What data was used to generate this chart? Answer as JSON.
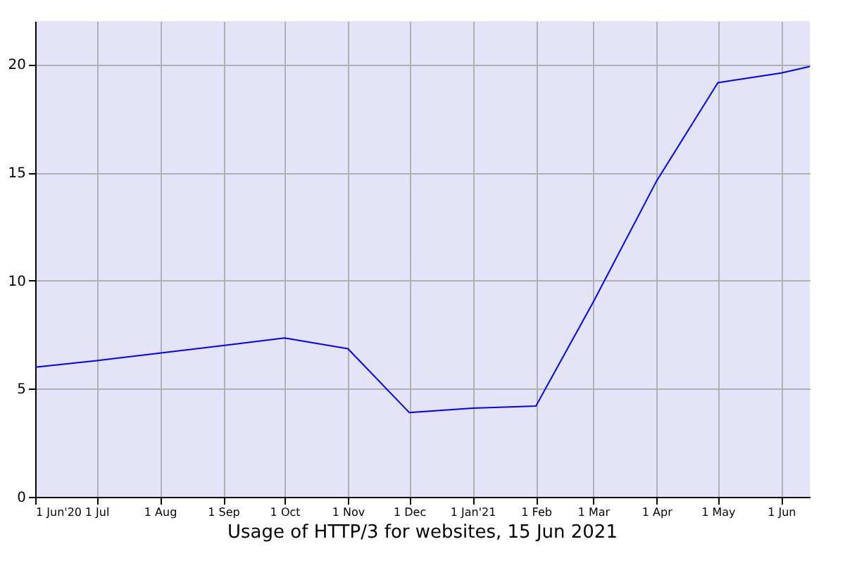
{
  "chart_data": {
    "type": "line",
    "title": "Usage of HTTP/3 for websites, 15 Jun 2021",
    "x": [
      "2020-06-01",
      "2020-07-01",
      "2020-08-01",
      "2020-09-01",
      "2020-10-01",
      "2020-11-01",
      "2020-12-01",
      "2021-01-01",
      "2021-02-01",
      "2021-03-01",
      "2021-04-01",
      "2021-05-01",
      "2021-06-01",
      "2021-06-15"
    ],
    "series": [
      {
        "color": "#0000ff",
        "values": [
          6.0,
          6.3,
          6.65,
          7.0,
          7.35,
          6.85,
          3.9,
          4.1,
          4.2,
          9.0,
          14.6,
          19.15,
          19.6,
          19.9
        ]
      }
    ],
    "xlim": [
      "2020-06-01",
      "2021-06-15"
    ],
    "xticks": [
      {
        "value": "2020-06-01",
        "label": "1 Jun'20"
      },
      {
        "value": "2020-07-01",
        "label": "1 Jul"
      },
      {
        "value": "2020-08-01",
        "label": "1 Aug"
      },
      {
        "value": "2020-09-01",
        "label": "1 Sep"
      },
      {
        "value": "2020-10-01",
        "label": "1 Oct"
      },
      {
        "value": "2020-11-01",
        "label": "1 Nov"
      },
      {
        "value": "2020-12-01",
        "label": "1 Dec"
      },
      {
        "value": "2021-01-01",
        "label": "1 Jan'21"
      },
      {
        "value": "2021-02-01",
        "label": "1 Feb"
      },
      {
        "value": "2021-03-01",
        "label": "1 Mar"
      },
      {
        "value": "2021-04-01",
        "label": "1 Apr"
      },
      {
        "value": "2021-05-01",
        "label": "1 May"
      },
      {
        "value": "2021-06-01",
        "label": "1 Jun"
      }
    ],
    "ylim": [
      0,
      22
    ],
    "yticks": [
      0,
      5,
      10,
      15,
      20
    ],
    "grid": true,
    "marker": "none",
    "line_style": "solid"
  }
}
